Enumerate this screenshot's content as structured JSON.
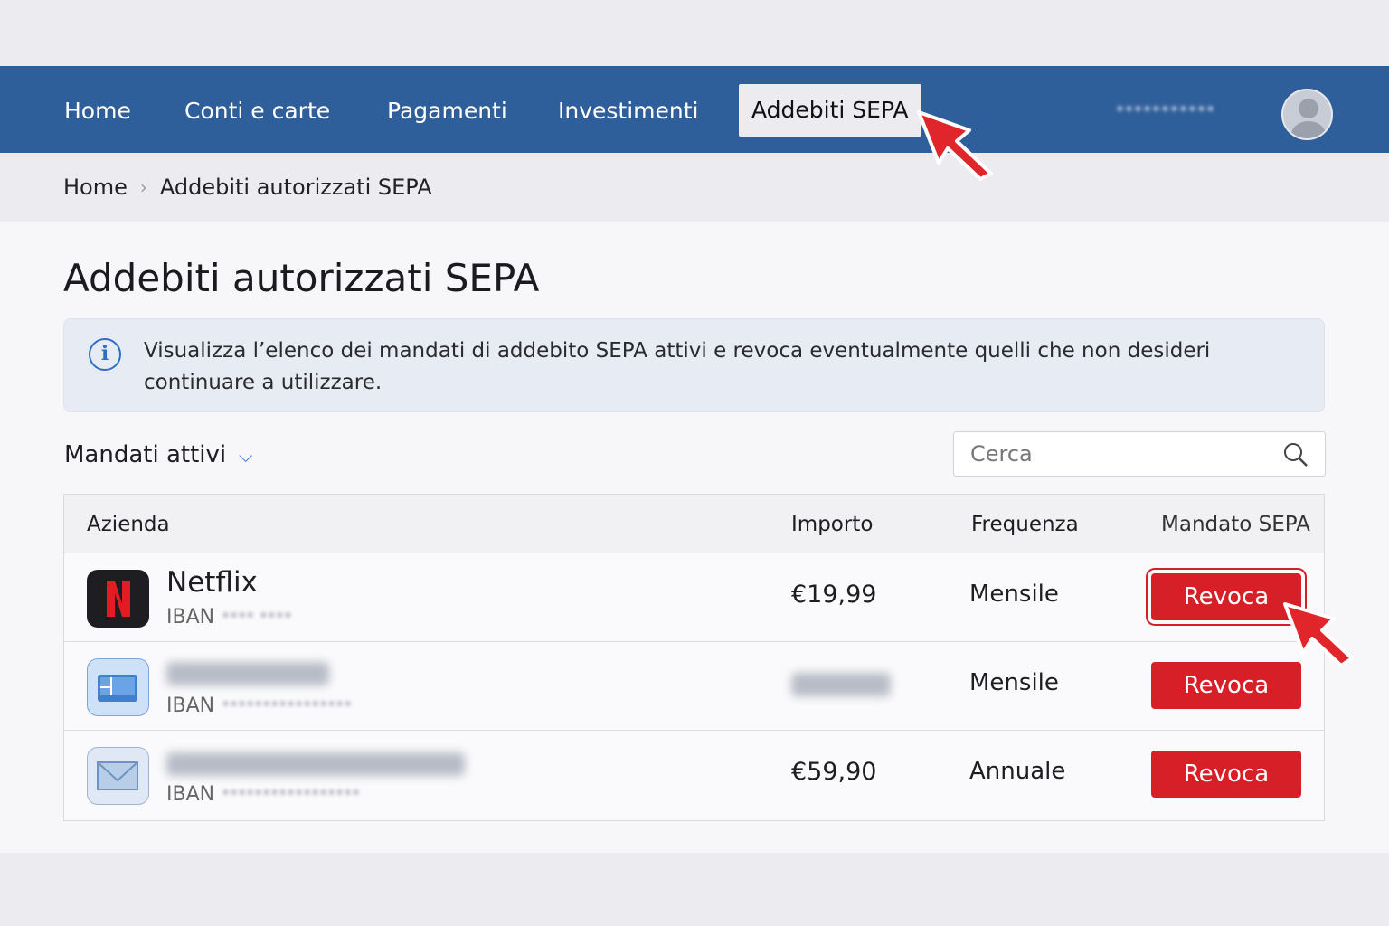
{
  "nav": {
    "items": [
      "Home",
      "Conti e carte",
      "Pagamenti",
      "Investimenti",
      "Addebiti SEPA"
    ],
    "active": "Addebiti SEPA",
    "user_masked": "***********"
  },
  "breadcrumb": {
    "home": "Home",
    "current": "Addebiti autorizzati SEPA"
  },
  "page_title": "Addebiti autorizzati SEPA",
  "info": {
    "text": "Visualizza l’elenco dei mandati di addebito SEPA attivi e revoca eventualmente quelli che non desideri continuare a utilizzare.",
    "icon": "info-icon"
  },
  "filter": {
    "label": "Mandati attivi"
  },
  "search": {
    "placeholder": "Cerca"
  },
  "table": {
    "headers": {
      "company": "Azienda",
      "amount": "Importo",
      "frequency": "Frequenza",
      "mandate": "Mandato SEPA"
    },
    "rows": [
      {
        "name": "Netflix",
        "iban_label": "IBAN",
        "iban_mask": "**** ****",
        "amount": "€19,99",
        "frequency": "Mensile",
        "action": "Revoca",
        "icon": "netflix-logo"
      },
      {
        "name": "",
        "iban_label": "IBAN",
        "iban_mask": "****************",
        "amount": "",
        "frequency": "Mensile",
        "action": "Revoca",
        "icon": "monitor-icon"
      },
      {
        "name": "",
        "iban_label": "IBAN",
        "iban_mask": "*****************",
        "amount": "€59,90",
        "frequency": "Annuale",
        "action": "Revoca",
        "icon": "mail-icon"
      }
    ]
  },
  "colors": {
    "nav": "#2f5f9a",
    "danger": "#d71f27",
    "accent": "#2f6ec5"
  }
}
